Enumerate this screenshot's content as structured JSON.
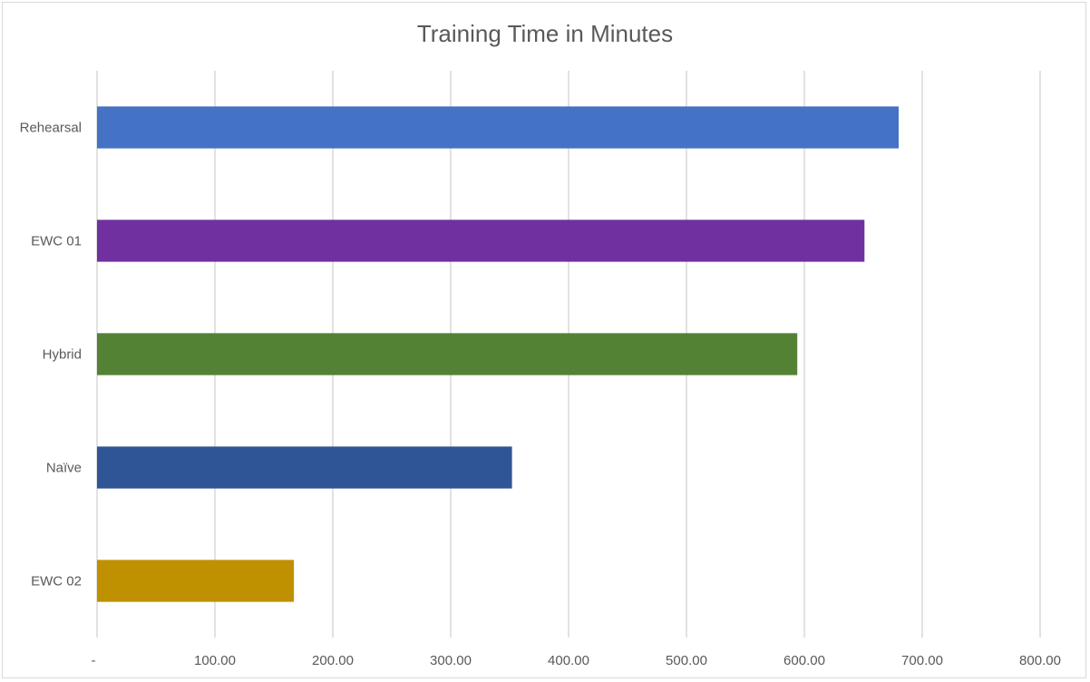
{
  "chart_data": {
    "type": "bar",
    "orientation": "horizontal",
    "title": "Training Time in Minutes",
    "xlabel": "",
    "ylabel": "",
    "categories": [
      "Rehearsal",
      "EWC 01",
      "Hybrid",
      "Naïve",
      "EWC 02"
    ],
    "values": [
      680,
      651,
      594,
      352,
      167
    ],
    "colors": [
      "#4472c4",
      "#7030a0",
      "#548235",
      "#2f5597",
      "#bf9000"
    ],
    "xlim": [
      0,
      800
    ],
    "xticks": [
      0,
      100,
      200,
      300,
      400,
      500,
      600,
      700,
      800
    ],
    "xtick_labels": [
      "-",
      "100.00",
      "200.00",
      "300.00",
      "400.00",
      "500.00",
      "600.00",
      "700.00",
      "800.00"
    ],
    "grid": "vertical",
    "legend": "none"
  }
}
